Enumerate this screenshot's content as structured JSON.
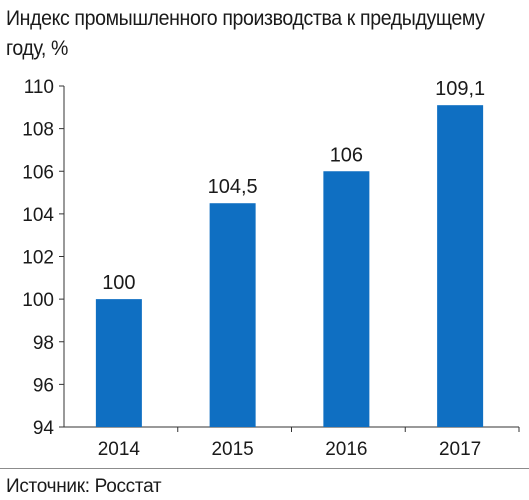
{
  "chart_data": {
    "type": "bar",
    "title": "Индекс промышленного производства к предыдущему году, %",
    "categories": [
      "2014",
      "2015",
      "2016",
      "2017"
    ],
    "values": [
      100,
      104.5,
      106,
      109.1
    ],
    "data_labels": [
      "100",
      "104,5",
      "106",
      "109,1"
    ],
    "y_ticks": [
      "94",
      "96",
      "98",
      "100",
      "102",
      "104",
      "106",
      "108",
      "110"
    ],
    "ylim": [
      94,
      110
    ],
    "grid": false,
    "legend": "none",
    "bar_color": "#0f6fc2"
  },
  "source": "Источник: Росстат"
}
